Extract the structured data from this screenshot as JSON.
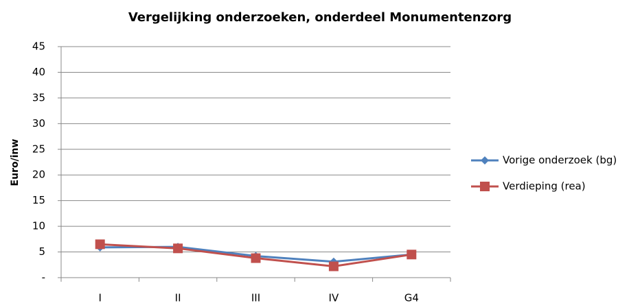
{
  "chart_data": {
    "type": "line",
    "title": "Vergelijking onderzoeken, onderdeel Monumentenzorg",
    "y_label": "Euro/inw",
    "categories": [
      "I",
      "II",
      "III",
      "IV",
      "G4"
    ],
    "series": [
      {
        "name": "Vorige onderzoek (bg)",
        "color": "#4f81bd",
        "marker": "diamond",
        "values": [
          5.9,
          6.0,
          4.2,
          3.1,
          4.5
        ]
      },
      {
        "name": "Verdieping (rea)",
        "color": "#c0504d",
        "marker": "square",
        "values": [
          6.5,
          5.7,
          3.8,
          2.2,
          4.5
        ]
      }
    ],
    "ylim": [
      0,
      45
    ],
    "yticks": [
      {
        "value": 0,
        "label": "-"
      },
      5,
      10,
      15,
      20,
      25,
      30,
      35,
      40,
      45
    ],
    "grid": true,
    "legend": "right"
  }
}
